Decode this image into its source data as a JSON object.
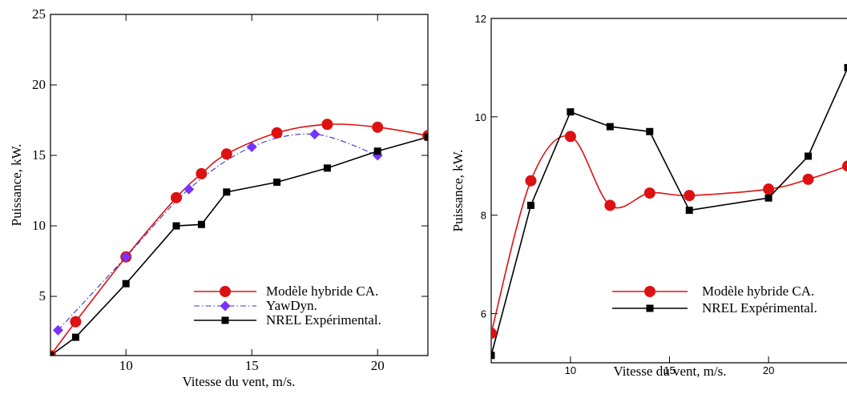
{
  "chart_data": [
    {
      "type": "line",
      "xlabel": "Vitesse du vent, m/s.",
      "ylabel": "Puissance, kW.",
      "xlim": [
        7,
        22
      ],
      "ylim": [
        0.8,
        25
      ],
      "xticks": [
        "10",
        "15",
        "20"
      ],
      "xtick_values": [
        10,
        15,
        20
      ],
      "yticks": [
        "5",
        "10",
        "15",
        "20",
        "25"
      ],
      "ytick_values": [
        5,
        10,
        15,
        20,
        25
      ],
      "legend_position": "bottom-right",
      "series": [
        {
          "name": "Modèle hybride CA.",
          "color": "#dd1111",
          "marker": "circle",
          "line": "solid-smooth",
          "x": [
            7,
            8,
            10,
            12,
            13,
            14,
            16,
            18,
            20,
            22
          ],
          "y": [
            0.8,
            3.2,
            7.8,
            12.0,
            13.7,
            15.1,
            16.6,
            17.2,
            17.0,
            16.4
          ]
        },
        {
          "name": "YawDyn.",
          "color": "#3333cc",
          "marker": "diamond",
          "marker_color": "#7733ff",
          "line": "dashdot-smooth",
          "x": [
            7.3,
            10,
            12.5,
            15,
            17.5,
            20
          ],
          "y": [
            2.6,
            7.8,
            12.6,
            15.6,
            16.5,
            15.0
          ]
        },
        {
          "name": "NREL Expérimental.",
          "color": "#000000",
          "marker": "square",
          "line": "solid",
          "x": [
            7,
            8,
            10,
            12,
            13,
            14,
            16,
            18,
            20,
            22
          ],
          "y": [
            0.8,
            2.1,
            5.9,
            10.0,
            10.1,
            12.4,
            13.1,
            14.1,
            15.3,
            16.3
          ]
        }
      ]
    },
    {
      "type": "line",
      "xlabel": "Vitesse du vent, m/s.",
      "ylabel": "Puissance, kW.",
      "xlim": [
        6,
        24
      ],
      "ylim": [
        5,
        12
      ],
      "xticks": [
        "10",
        "15",
        "20"
      ],
      "xtick_values": [
        10,
        15,
        20
      ],
      "yticks": [
        "6",
        "8",
        "10",
        "12"
      ],
      "ytick_values": [
        6,
        8,
        10,
        12
      ],
      "legend_position": "bottom-right",
      "series": [
        {
          "name": "Modèle hybride CA.",
          "color": "#dd1111",
          "marker": "circle",
          "line": "solid-smooth",
          "x": [
            6,
            8,
            10,
            12,
            14,
            16,
            20,
            22,
            24
          ],
          "y": [
            5.6,
            8.7,
            9.6,
            8.2,
            8.45,
            8.4,
            8.53,
            8.73,
            9.0
          ]
        },
        {
          "name": "NREL Expérimental.",
          "color": "#000000",
          "marker": "square",
          "line": "solid",
          "x": [
            6,
            8,
            10,
            12,
            14,
            16,
            20,
            22,
            24
          ],
          "y": [
            5.15,
            8.2,
            10.1,
            9.8,
            9.7,
            8.1,
            8.35,
            9.2,
            11.0
          ]
        }
      ]
    }
  ]
}
